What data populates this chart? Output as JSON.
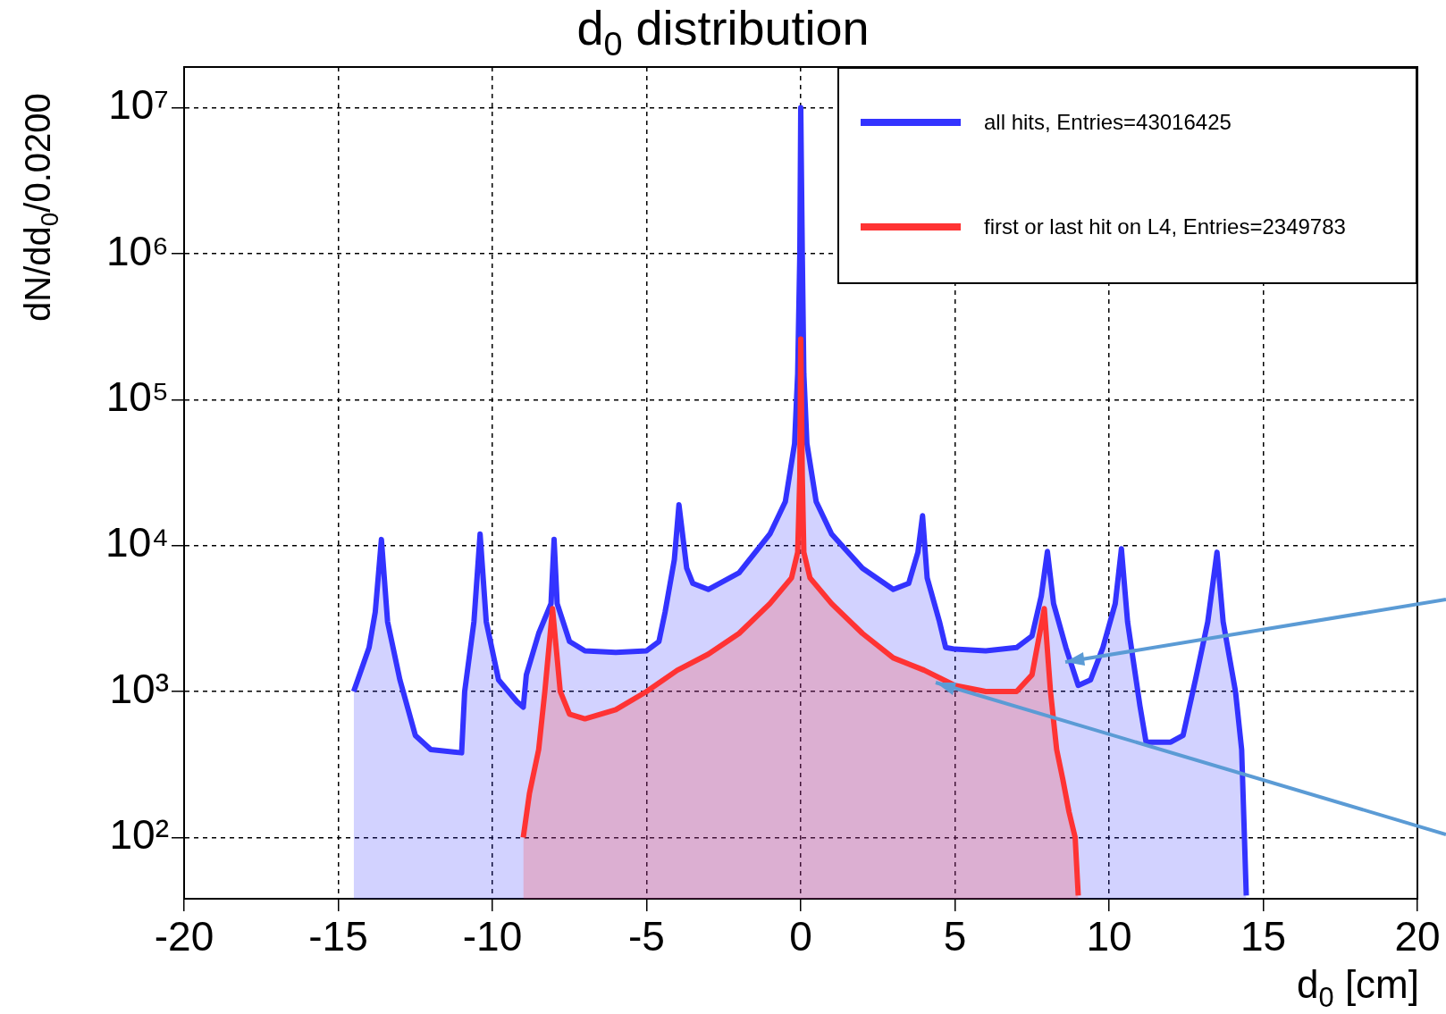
{
  "chart_data": {
    "type": "area",
    "title": "d$_{0}$ distribution",
    "xlabel": "d$_{0}$ [cm]",
    "ylabel": "dN/dd$_{0}$/0.0200",
    "log": "y",
    "grid": true,
    "legend": "top right",
    "xlim": [
      -20,
      20
    ],
    "xticks": [
      -20,
      -15,
      -10,
      -5,
      0,
      5,
      10,
      15,
      20
    ],
    "ylim": [
      38,
      19000000
    ],
    "yticks": [
      {
        "value": 100,
        "label": "10²"
      },
      {
        "value": 1000,
        "label": "10³"
      },
      {
        "value": 10000,
        "label": "10⁴"
      },
      {
        "value": 100000,
        "label": "10⁵"
      },
      {
        "value": 1000000,
        "label": "10⁶"
      },
      {
        "value": 10000000,
        "label": "10⁷"
      }
    ],
    "series": [
      {
        "name": "all hits, Entries=43016425",
        "color": "#3333ff",
        "x": [
          -14.5,
          -14.0,
          -13.8,
          -13.6,
          -13.4,
          -13.0,
          -12.5,
          -12.0,
          -11.0,
          -10.9,
          -10.6,
          -10.4,
          -10.2,
          -9.8,
          -9.2,
          -9.0,
          -8.9,
          -8.5,
          -8.1,
          -8.0,
          -7.9,
          -7.5,
          -7.0,
          -6.0,
          -5.0,
          -4.6,
          -4.4,
          -4.1,
          -3.95,
          -3.7,
          -3.5,
          -3.0,
          -2.0,
          -1.0,
          -0.5,
          -0.2,
          -0.1,
          -0.03,
          0.0,
          0.05,
          0.1,
          0.2,
          0.5,
          1.0,
          2.0,
          3.0,
          3.5,
          3.8,
          3.95,
          4.1,
          4.5,
          4.7,
          5.0,
          6.0,
          7.0,
          7.5,
          7.8,
          8.0,
          8.2,
          8.6,
          9.0,
          9.4,
          9.8,
          10.2,
          10.4,
          10.6,
          11.0,
          11.2,
          12.0,
          12.4,
          12.8,
          13.2,
          13.5,
          13.7,
          14.1,
          14.3,
          14.45
        ],
        "values": [
          1000,
          2000,
          3500,
          11000,
          3000,
          1200,
          500,
          400,
          380,
          1000,
          3000,
          12000,
          3000,
          1200,
          850,
          780,
          1300,
          2500,
          4000,
          11000,
          4000,
          2200,
          1900,
          1850,
          1900,
          2200,
          3500,
          8000,
          19000,
          7000,
          5500,
          5000,
          6500,
          12000,
          20000,
          50000,
          150000,
          1000000,
          10000000,
          1000000,
          150000,
          50000,
          20000,
          12000,
          7000,
          5000,
          5500,
          9000,
          16000,
          6000,
          3000,
          2000,
          1950,
          1900,
          2000,
          2400,
          4500,
          9100,
          4000,
          2000,
          1100,
          1200,
          2000,
          4000,
          9500,
          3000,
          800,
          450,
          450,
          500,
          1200,
          3000,
          9000,
          3000,
          1000,
          400,
          40
        ]
      },
      {
        "name": "first or last hit on L4, Entries=2349783",
        "color": "#ff3333",
        "x": [
          -9.0,
          -8.8,
          -8.5,
          -8.3,
          -8.05,
          -7.8,
          -7.5,
          -7.0,
          -6.0,
          -5.0,
          -4.0,
          -3.0,
          -2.0,
          -1.0,
          -0.3,
          -0.1,
          -0.03,
          0.0,
          0.05,
          0.1,
          0.3,
          1.0,
          2.0,
          3.0,
          4.0,
          5.0,
          6.0,
          7.0,
          7.5,
          7.9,
          8.1,
          8.3,
          8.5,
          8.7,
          8.9,
          9.0
        ],
        "values": [
          100,
          200,
          400,
          1000,
          3700,
          1000,
          700,
          650,
          750,
          1000,
          1400,
          1800,
          2500,
          4000,
          6000,
          9000,
          30000,
          260000,
          30000,
          9000,
          6000,
          4000,
          2500,
          1700,
          1400,
          1100,
          1000,
          1000,
          1300,
          3700,
          1000,
          400,
          250,
          150,
          100,
          40
        ]
      }
    ]
  }
}
